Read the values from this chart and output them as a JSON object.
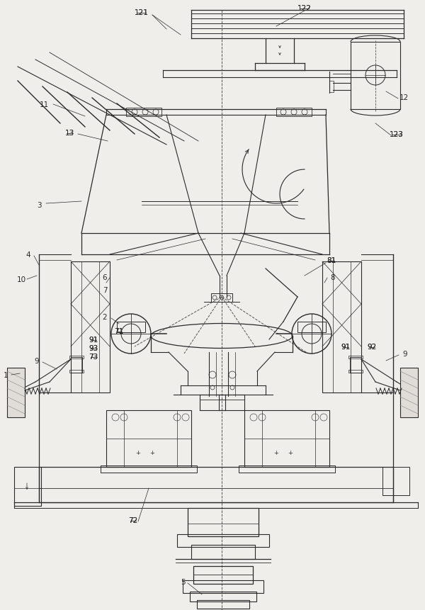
{
  "bg_color": "#f0eeeb",
  "line_color": "#2a2a2a",
  "dashed_color": "#555555",
  "fig_width": 6.0,
  "fig_height": 8.62,
  "dpi": 100
}
